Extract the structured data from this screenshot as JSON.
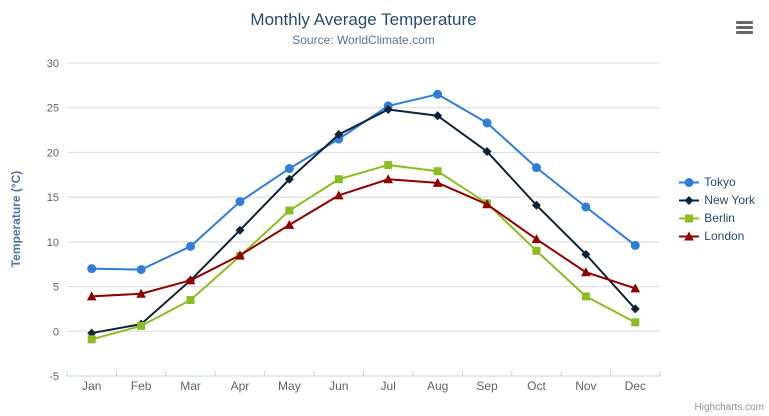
{
  "credits": {
    "label": "Highcharts.com"
  },
  "export_menu": {
    "icon": "hamburger"
  },
  "chart_data": {
    "type": "line",
    "title": "Monthly Average Temperature",
    "subtitle": "Source: WorldClimate.com",
    "xlabel": "",
    "ylabel": "Temperature (°C)",
    "categories": [
      "Jan",
      "Feb",
      "Mar",
      "Apr",
      "May",
      "Jun",
      "Jul",
      "Aug",
      "Sep",
      "Oct",
      "Nov",
      "Dec"
    ],
    "ylim": [
      -5,
      30
    ],
    "yticks": [
      -5,
      0,
      5,
      10,
      15,
      20,
      25,
      30
    ],
    "grid": "horizontal",
    "legend_position": "right-middle",
    "series": [
      {
        "name": "Tokyo",
        "color": "#2f7ed8",
        "marker": "circle",
        "values": [
          7.0,
          6.9,
          9.5,
          14.5,
          18.2,
          21.5,
          25.2,
          26.5,
          23.3,
          18.3,
          13.9,
          9.6
        ]
      },
      {
        "name": "New York",
        "color": "#0d233a",
        "marker": "diamond",
        "values": [
          -0.2,
          0.8,
          5.7,
          11.3,
          17.0,
          22.0,
          24.8,
          24.1,
          20.1,
          14.1,
          8.6,
          2.5
        ]
      },
      {
        "name": "Berlin",
        "color": "#8bbc21",
        "marker": "square",
        "values": [
          -0.9,
          0.6,
          3.5,
          8.4,
          13.5,
          17.0,
          18.6,
          17.9,
          14.3,
          9.0,
          3.9,
          1.0
        ]
      },
      {
        "name": "London",
        "color": "#910000",
        "marker": "triangle",
        "values": [
          3.9,
          4.2,
          5.7,
          8.5,
          11.9,
          15.2,
          17.0,
          16.6,
          14.2,
          10.3,
          6.6,
          4.8
        ]
      }
    ]
  }
}
